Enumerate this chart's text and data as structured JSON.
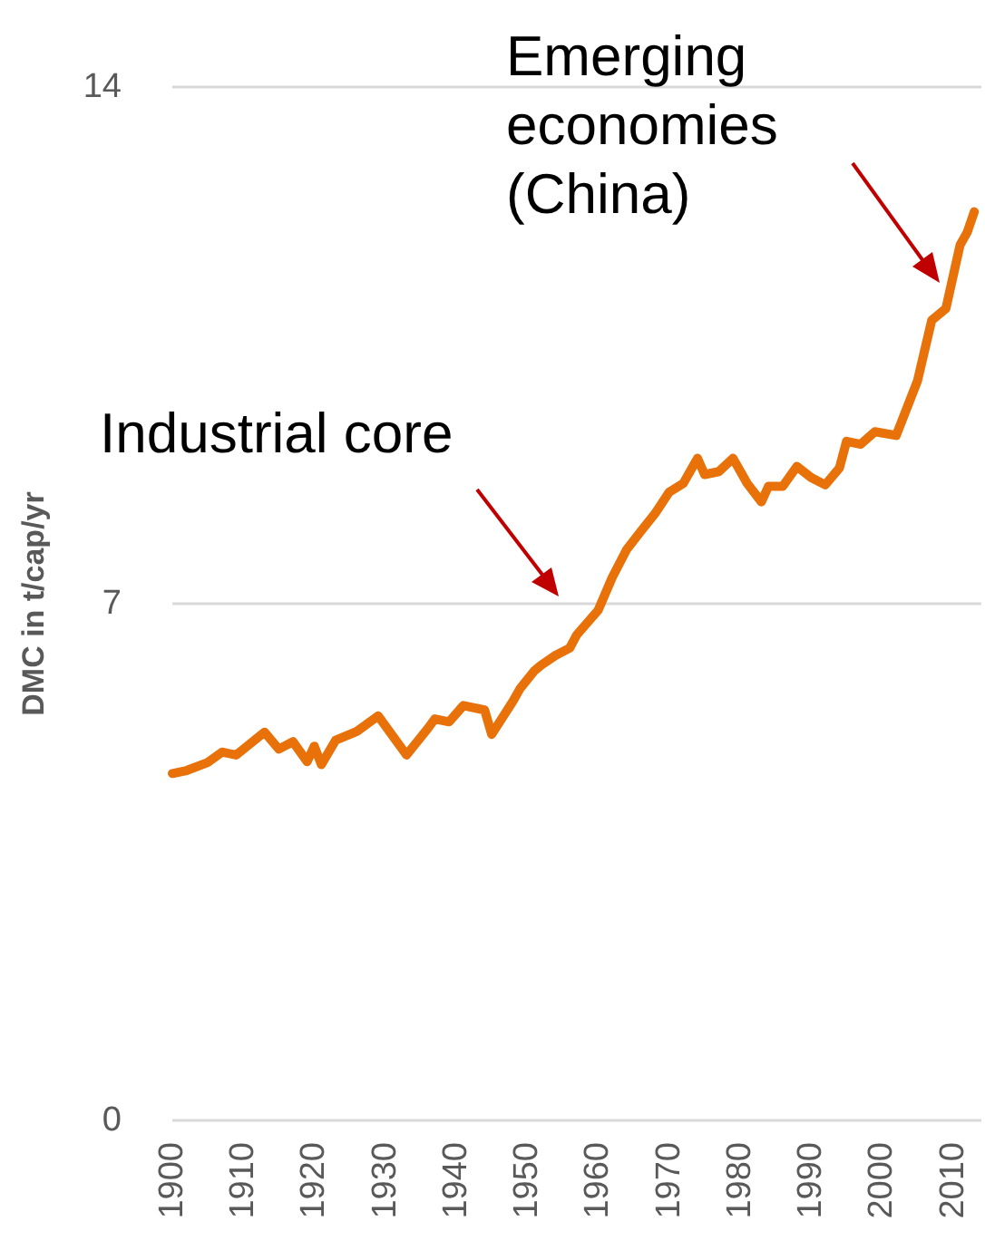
{
  "chart_data": {
    "type": "line",
    "ylabel": "DMC in t/cap/yr",
    "x": [
      1900,
      1902,
      1905,
      1907,
      1909,
      1913,
      1915,
      1917,
      1919,
      1920,
      1921,
      1923,
      1926,
      1929,
      1933,
      1936,
      1937,
      1939,
      1941,
      1944,
      1945,
      1948,
      1949,
      1951,
      1952,
      1954,
      1956,
      1957,
      1960,
      1962,
      1964,
      1966,
      1968,
      1970,
      1972,
      1974,
      1975,
      1977,
      1979,
      1981,
      1983,
      1984,
      1986,
      1988,
      1990,
      1992,
      1994,
      1995,
      1997,
      1999,
      2002,
      2005,
      2007,
      2009,
      2011,
      2012,
      2013
    ],
    "series": [
      {
        "color": "#e8710a",
        "values": [
          4.7,
          4.74,
          4.85,
          4.99,
          4.95,
          5.26,
          5.03,
          5.13,
          4.86,
          5.07,
          4.82,
          5.15,
          5.27,
          5.48,
          4.95,
          5.31,
          5.44,
          5.4,
          5.62,
          5.56,
          5.23,
          5.68,
          5.85,
          6.09,
          6.17,
          6.3,
          6.4,
          6.58,
          6.91,
          7.36,
          7.73,
          7.98,
          8.22,
          8.51,
          8.63,
          8.97,
          8.75,
          8.79,
          8.97,
          8.63,
          8.38,
          8.59,
          8.59,
          8.86,
          8.71,
          8.61,
          8.84,
          9.2,
          9.16,
          9.33,
          9.28,
          10.02,
          10.84,
          11.0,
          11.86,
          12.03,
          12.31
        ]
      }
    ],
    "xlim": [
      1900,
      2014
    ],
    "xticks": [
      1900,
      1910,
      1920,
      1930,
      1940,
      1950,
      1960,
      1970,
      1980,
      1990,
      2000,
      2010
    ],
    "ylim": [
      0,
      14
    ],
    "yticks": [
      0,
      7,
      14
    ],
    "grid": "y",
    "marker": "none",
    "line_style": "solid",
    "annotations": [
      "Industrial core",
      "Emerging economies (China)"
    ]
  }
}
